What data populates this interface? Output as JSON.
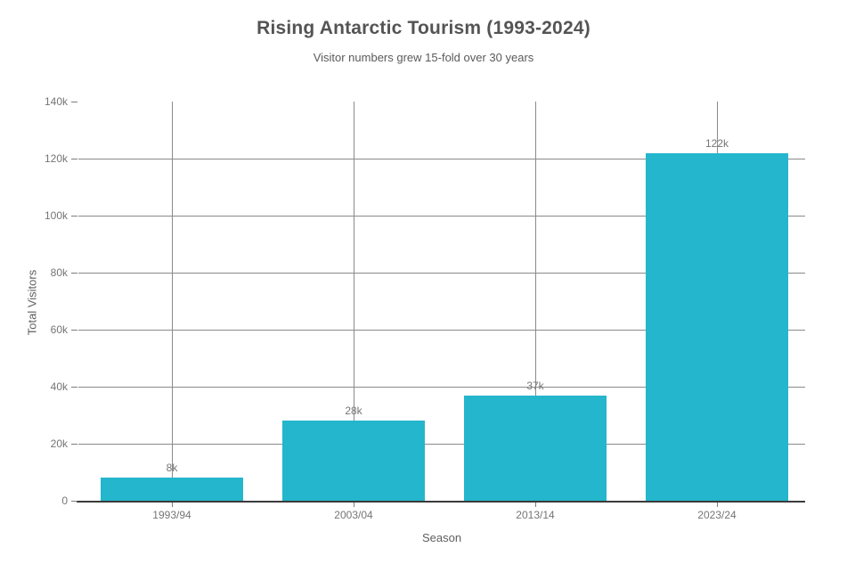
{
  "page": {
    "background_color": "#ffffff"
  },
  "chart_data": {
    "type": "bar",
    "title": "Rising Antarctic Tourism (1993-2024)",
    "subtitle": "Visitor numbers grew 15-fold over 30 years",
    "xlabel": "Season",
    "ylabel": "Total Visitors",
    "categories": [
      "1993/94",
      "2003/04",
      "2013/14",
      "2023/24"
    ],
    "values": [
      8000,
      28000,
      37000,
      122000
    ],
    "value_labels": [
      "8k",
      "28k",
      "37k",
      "122k"
    ],
    "ylim": [
      0,
      140000
    ],
    "ytick_values": [
      0,
      20000,
      40000,
      60000,
      80000,
      100000,
      120000,
      140000
    ],
    "ytick_labels": [
      "0",
      "20k",
      "40k",
      "60k",
      "80k",
      "100k",
      "120k",
      "140k"
    ],
    "grid": "on",
    "gridline_style": {
      "horizontal_at_ticks": [
        "20k",
        "40k",
        "60k",
        "80k",
        "100k",
        "120k"
      ],
      "vertical_at": "bar centers"
    },
    "legend_position": "none",
    "colors": {
      "bar": "#24b6cc",
      "grid": "#8a8a8a",
      "axis": "#3a3a3a",
      "title_text": "#545454",
      "subtitle_text": "#5a5a5a",
      "tick_text": "#757575"
    }
  }
}
